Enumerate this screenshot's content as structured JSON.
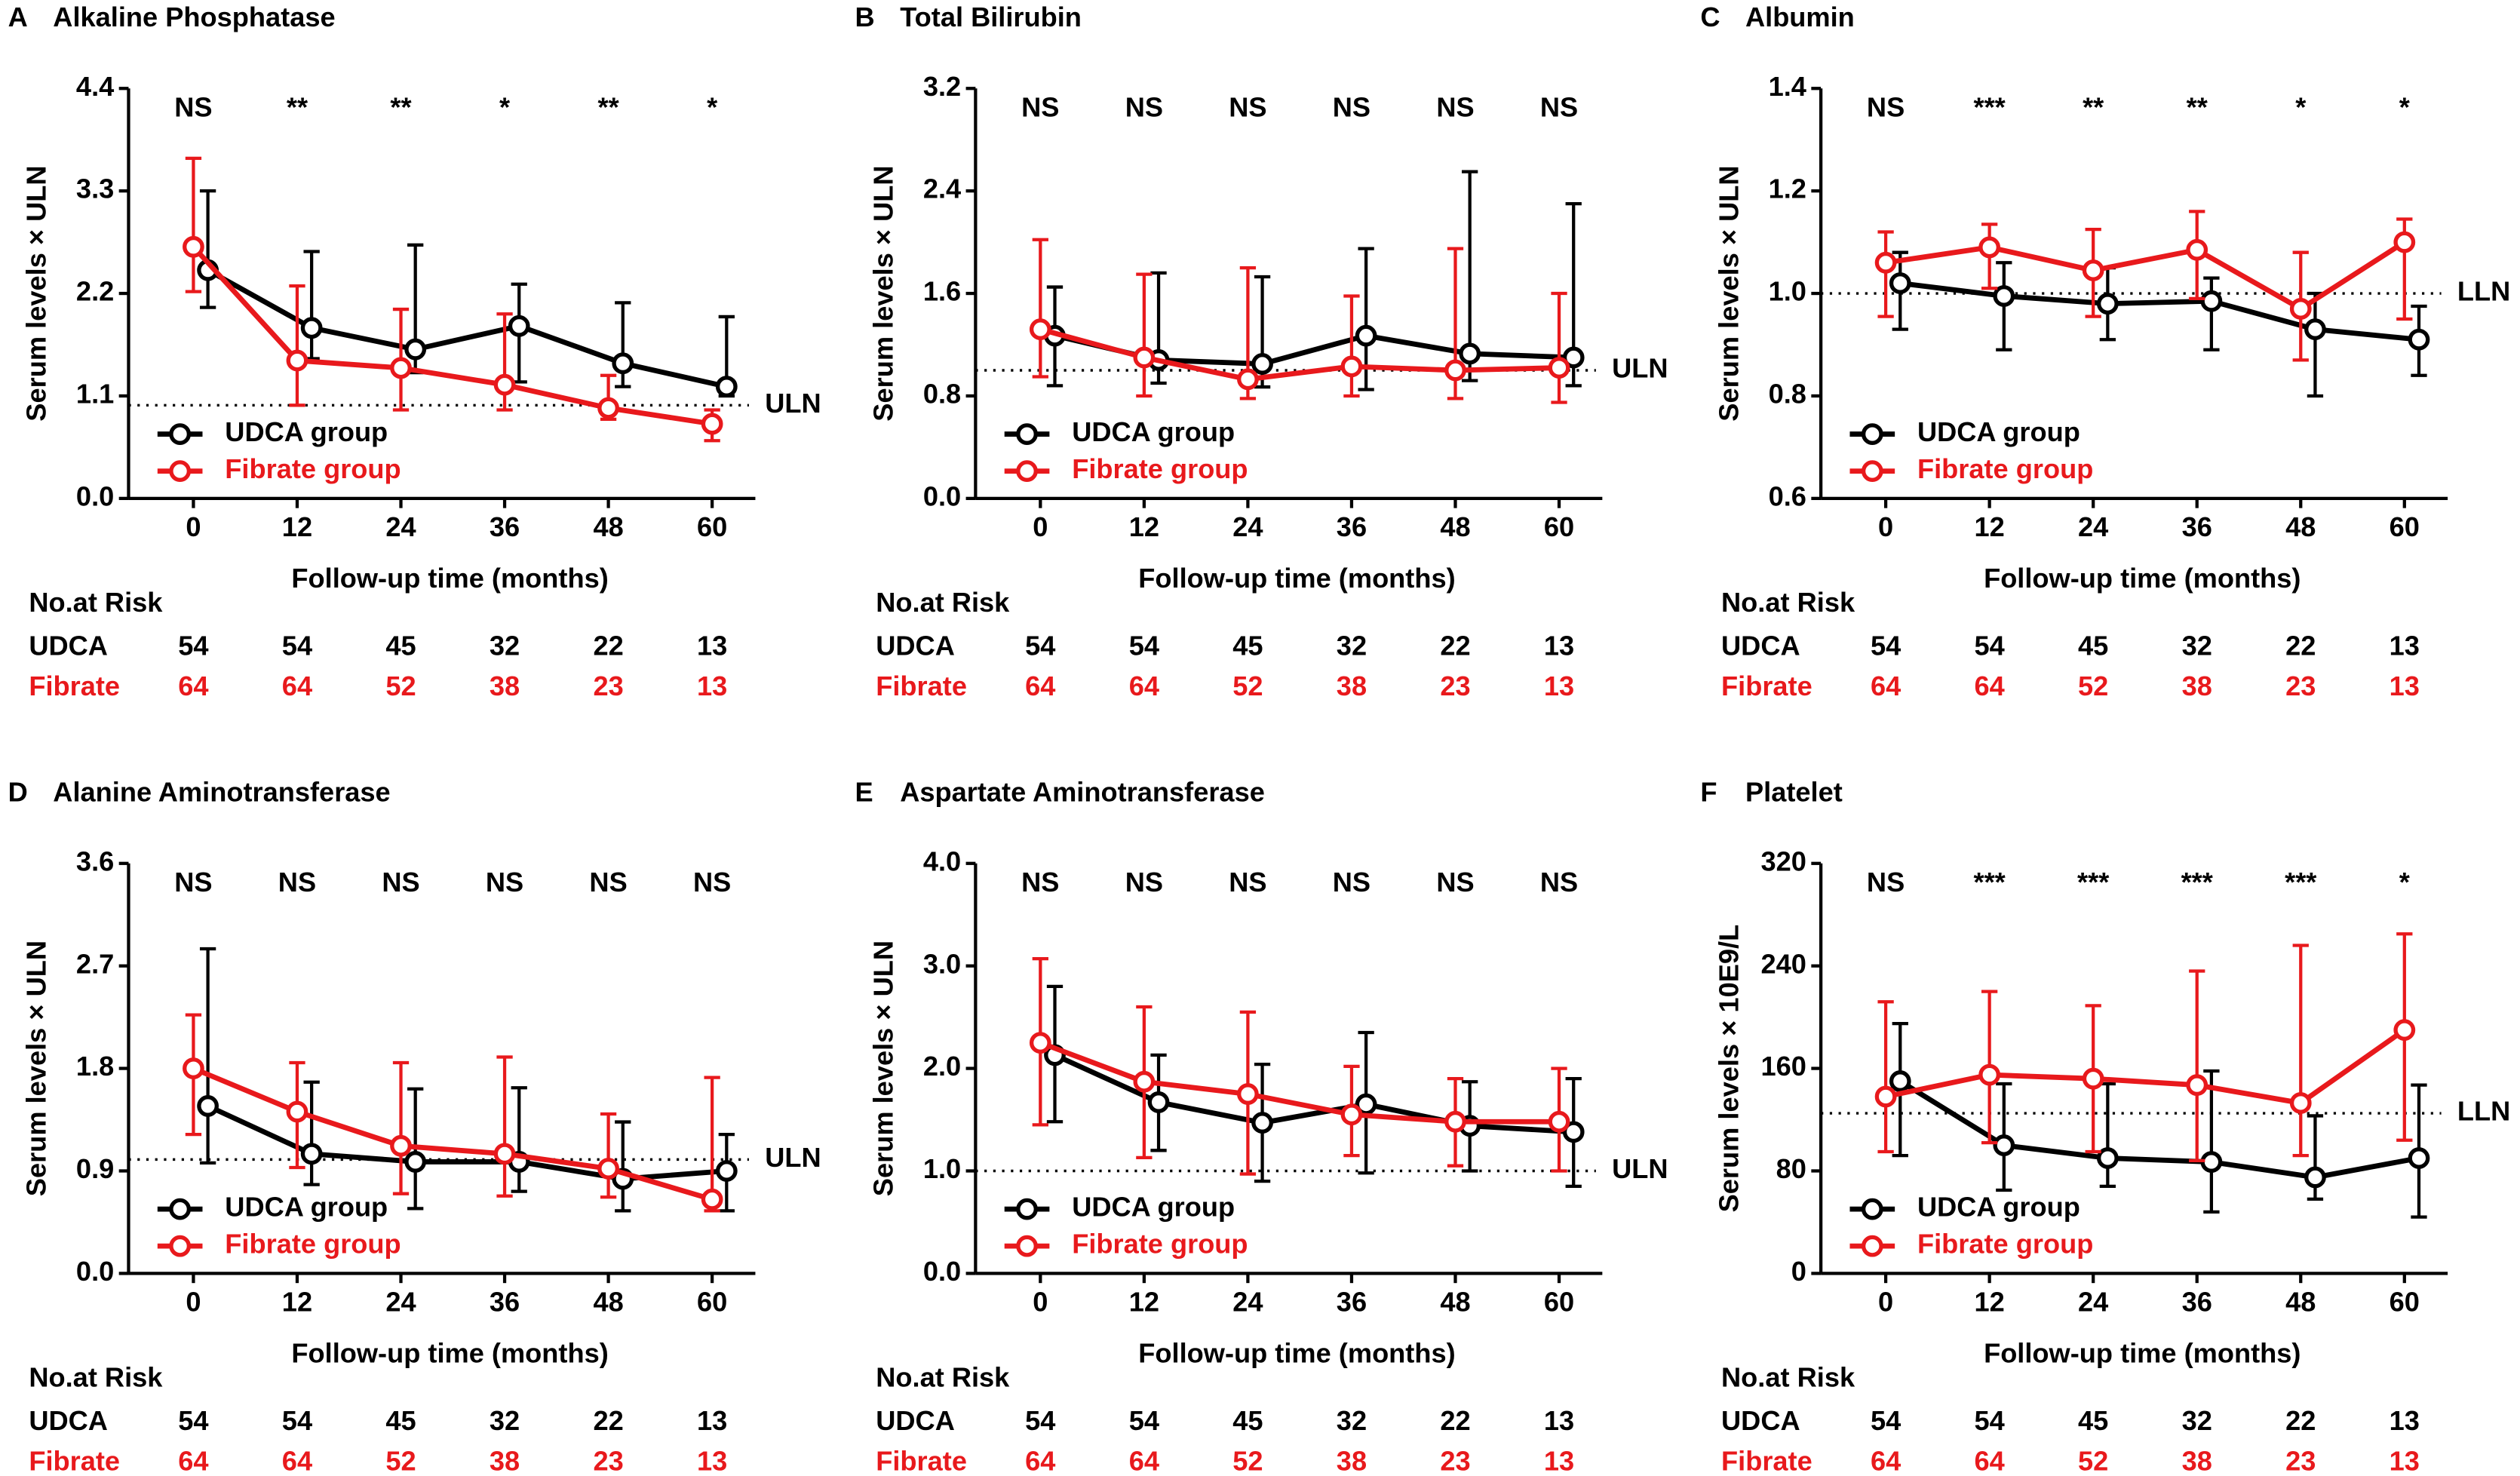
{
  "chart_data": [
    {
      "type": "line",
      "label": "A",
      "title": "Alkaline Phosphatase",
      "ylabel": "Serum levels × ULN",
      "xlabel": "Follow-up time (months)",
      "x": [
        0,
        12,
        24,
        36,
        48,
        60
      ],
      "xlim": [
        -7.5,
        65
      ],
      "xticks": [
        0,
        12,
        24,
        36,
        48,
        60
      ],
      "ylim": [
        0,
        4.4
      ],
      "yticks": [
        {
          "value": 0,
          "label": "0.0"
        },
        1.1,
        2.2,
        3.3,
        4.4
      ],
      "annotations": [
        "NS",
        "**",
        "**",
        "*",
        "**",
        "*"
      ],
      "ref_line": {
        "value": 1,
        "label": "ULN"
      },
      "series": [
        {
          "name": "UDCA group",
          "color": "#000000",
          "values": [
            2.45,
            1.83,
            1.6,
            1.85,
            1.45,
            1.2
          ],
          "err_high": [
            3.3,
            2.65,
            2.72,
            2.3,
            2.1,
            1.95
          ],
          "err_low": [
            2.05,
            1.5,
            1.35,
            1.25,
            1.2,
            1.1
          ]
        },
        {
          "name": "Fibrate group",
          "color": "#e8191c",
          "values": [
            2.7,
            1.48,
            1.4,
            1.22,
            0.97,
            0.8
          ],
          "err_high": [
            3.65,
            2.28,
            2.03,
            1.98,
            1.32,
            0.95
          ],
          "err_low": [
            2.22,
            1.0,
            0.95,
            0.95,
            0.85,
            0.62
          ]
        }
      ],
      "risk_table": {
        "title": "No.at Risk",
        "rows": [
          {
            "name": "UDCA",
            "values": [
              54,
              54,
              45,
              32,
              22,
              13
            ]
          },
          {
            "name": "Fibrate",
            "values": [
              64,
              64,
              52,
              38,
              23,
              13
            ]
          }
        ]
      }
    },
    {
      "type": "line",
      "label": "B",
      "title": "Total Bilirubin",
      "ylabel": "Serum levels × ULN",
      "xlabel": "Follow-up time (months)",
      "x": [
        0,
        12,
        24,
        36,
        48,
        60
      ],
      "xlim": [
        -7.5,
        65
      ],
      "xticks": [
        0,
        12,
        24,
        36,
        48,
        60
      ],
      "ylim": [
        0,
        3.2
      ],
      "yticks": [
        {
          "value": 0,
          "label": "0.0"
        },
        0.8,
        1.6,
        2.4,
        3.2
      ],
      "annotations": [
        "NS",
        "NS",
        "NS",
        "NS",
        "NS",
        "NS"
      ],
      "ref_line": {
        "value": 1,
        "label": "ULN"
      },
      "series": [
        {
          "name": "UDCA group",
          "color": "#000000",
          "values": [
            1.27,
            1.08,
            1.05,
            1.27,
            1.13,
            1.1
          ],
          "err_high": [
            1.65,
            1.76,
            1.73,
            1.95,
            2.55,
            2.3
          ],
          "err_low": [
            0.88,
            0.9,
            0.87,
            0.85,
            0.92,
            0.88
          ]
        },
        {
          "name": "Fibrate group",
          "color": "#e8191c",
          "values": [
            1.32,
            1.1,
            0.93,
            1.03,
            1.0,
            1.02
          ],
          "err_high": [
            2.02,
            1.75,
            1.8,
            1.58,
            1.95,
            1.6
          ],
          "err_low": [
            0.95,
            0.8,
            0.78,
            0.8,
            0.78,
            0.75
          ]
        }
      ],
      "risk_table": {
        "title": "No.at Risk",
        "rows": [
          {
            "name": "UDCA",
            "values": [
              54,
              54,
              45,
              32,
              22,
              13
            ]
          },
          {
            "name": "Fibrate",
            "values": [
              64,
              64,
              52,
              38,
              23,
              13
            ]
          }
        ]
      }
    },
    {
      "type": "line",
      "label": "C",
      "title": "Albumin",
      "ylabel": "Serum levels × ULN",
      "xlabel": "Follow-up time (months)",
      "x": [
        0,
        12,
        24,
        36,
        48,
        60
      ],
      "xlim": [
        -7.5,
        65
      ],
      "xticks": [
        0,
        12,
        24,
        36,
        48,
        60
      ],
      "ylim": [
        0.6,
        1.4
      ],
      "yticks": [
        0.6,
        0.8,
        {
          "value": 1,
          "label": "1.0"
        },
        1.2,
        1.4
      ],
      "annotations": [
        "NS",
        "***",
        "**",
        "**",
        "*",
        "*"
      ],
      "ref_line": {
        "value": 1,
        "label": "LLN"
      },
      "series": [
        {
          "name": "UDCA group",
          "color": "#000000",
          "values": [
            1.02,
            0.995,
            0.98,
            0.985,
            0.93,
            0.91
          ],
          "err_high": [
            1.08,
            1.06,
            1.05,
            1.03,
            1.0,
            0.975
          ],
          "err_low": [
            0.93,
            0.89,
            0.91,
            0.89,
            0.8,
            0.84
          ]
        },
        {
          "name": "Fibrate group",
          "color": "#e8191c",
          "values": [
            1.06,
            1.09,
            1.045,
            1.085,
            0.97,
            1.1
          ],
          "err_high": [
            1.12,
            1.135,
            1.125,
            1.16,
            1.08,
            1.145
          ],
          "err_low": [
            0.955,
            1.01,
            0.955,
            0.99,
            0.87,
            0.95
          ]
        }
      ],
      "risk_table": {
        "title": "No.at Risk",
        "rows": [
          {
            "name": "UDCA",
            "values": [
              54,
              54,
              45,
              32,
              22,
              13
            ]
          },
          {
            "name": "Fibrate",
            "values": [
              64,
              64,
              52,
              38,
              23,
              13
            ]
          }
        ]
      }
    },
    {
      "type": "line",
      "label": "D",
      "title": "Alanine Aminotransferase",
      "ylabel": "Serum levels × ULN",
      "xlabel": "Follow-up time (months)",
      "x": [
        0,
        12,
        24,
        36,
        48,
        60
      ],
      "xlim": [
        -7.5,
        65
      ],
      "xticks": [
        0,
        12,
        24,
        36,
        48,
        60
      ],
      "ylim": [
        0,
        3.6
      ],
      "yticks": [
        {
          "value": 0,
          "label": "0.0"
        },
        0.9,
        1.8,
        2.7,
        3.6
      ],
      "annotations": [
        "NS",
        "NS",
        "NS",
        "NS",
        "NS",
        "NS"
      ],
      "ref_line": {
        "value": 1,
        "label": "ULN"
      },
      "series": [
        {
          "name": "UDCA group",
          "color": "#000000",
          "values": [
            1.47,
            1.05,
            0.98,
            0.98,
            0.83,
            0.9
          ],
          "err_high": [
            2.85,
            1.68,
            1.62,
            1.63,
            1.33,
            1.22
          ],
          "err_low": [
            0.97,
            0.78,
            0.57,
            0.72,
            0.55,
            0.55
          ]
        },
        {
          "name": "Fibrate group",
          "color": "#e8191c",
          "values": [
            1.8,
            1.42,
            1.12,
            1.05,
            0.92,
            0.65
          ],
          "err_high": [
            2.27,
            1.85,
            1.85,
            1.9,
            1.4,
            1.72
          ],
          "err_low": [
            1.22,
            0.93,
            0.7,
            0.68,
            0.67,
            0.55
          ]
        }
      ],
      "risk_table": {
        "title": "No.at Risk",
        "rows": [
          {
            "name": "UDCA",
            "values": [
              54,
              54,
              45,
              32,
              22,
              13
            ]
          },
          {
            "name": "Fibrate",
            "values": [
              64,
              64,
              52,
              38,
              23,
              13
            ]
          }
        ]
      }
    },
    {
      "type": "line",
      "label": "E",
      "title": "Aspartate Aminotransferase",
      "ylabel": "Serum levels × ULN",
      "xlabel": "Follow-up time (months)",
      "x": [
        0,
        12,
        24,
        36,
        48,
        60
      ],
      "xlim": [
        -7.5,
        65
      ],
      "xticks": [
        0,
        12,
        24,
        36,
        48,
        60
      ],
      "ylim": [
        0,
        4
      ],
      "yticks": [
        {
          "value": 0,
          "label": "0.0"
        },
        {
          "value": 1,
          "label": "1.0"
        },
        {
          "value": 2,
          "label": "2.0"
        },
        {
          "value": 3,
          "label": "3.0"
        },
        {
          "value": 4,
          "label": "4.0"
        }
      ],
      "annotations": [
        "NS",
        "NS",
        "NS",
        "NS",
        "NS",
        "NS"
      ],
      "ref_line": {
        "value": 1,
        "label": "ULN"
      },
      "series": [
        {
          "name": "UDCA group",
          "color": "#000000",
          "values": [
            2.13,
            1.67,
            1.47,
            1.65,
            1.44,
            1.38
          ],
          "err_high": [
            2.8,
            2.13,
            2.04,
            2.35,
            1.87,
            1.9
          ],
          "err_low": [
            1.48,
            1.2,
            0.9,
            0.98,
            1.0,
            0.85
          ]
        },
        {
          "name": "Fibrate group",
          "color": "#e8191c",
          "values": [
            2.25,
            1.87,
            1.75,
            1.55,
            1.48,
            1.48
          ],
          "err_high": [
            3.07,
            2.6,
            2.55,
            2.02,
            1.9,
            2.0
          ],
          "err_low": [
            1.45,
            1.13,
            0.97,
            1.15,
            1.05,
            1.0
          ]
        }
      ],
      "risk_table": {
        "title": "No.at Risk",
        "rows": [
          {
            "name": "UDCA",
            "values": [
              54,
              54,
              45,
              32,
              22,
              13
            ]
          },
          {
            "name": "Fibrate",
            "values": [
              64,
              64,
              52,
              38,
              23,
              13
            ]
          }
        ]
      }
    },
    {
      "type": "line",
      "label": "F",
      "title": "Platelet",
      "ylabel": "Serum levels × 10E9/L",
      "xlabel": "Follow-up time (months)",
      "x": [
        0,
        12,
        24,
        36,
        48,
        60
      ],
      "xlim": [
        -7.5,
        65
      ],
      "xticks": [
        0,
        12,
        24,
        36,
        48,
        60
      ],
      "ylim": [
        0,
        320
      ],
      "yticks": [
        0,
        80,
        160,
        240,
        320
      ],
      "annotations": [
        "NS",
        "***",
        "***",
        "***",
        "***",
        "*"
      ],
      "ref_line": {
        "value": 125,
        "label": "LLN"
      },
      "series": [
        {
          "name": "UDCA group",
          "color": "#000000",
          "values": [
            150,
            100,
            90,
            87,
            75,
            90
          ],
          "err_high": [
            195,
            148,
            148,
            158,
            123,
            147
          ],
          "err_low": [
            92,
            65,
            68,
            48,
            58,
            44
          ]
        },
        {
          "name": "Fibrate group",
          "color": "#e8191c",
          "values": [
            138,
            155,
            152,
            147,
            133,
            190
          ],
          "err_high": [
            212,
            220,
            209,
            236,
            256,
            265
          ],
          "err_low": [
            95,
            102,
            95,
            88,
            92,
            104
          ]
        }
      ],
      "risk_table": {
        "title": "No.at Risk",
        "rows": [
          {
            "name": "UDCA",
            "values": [
              54,
              54,
              45,
              32,
              22,
              13
            ]
          },
          {
            "name": "Fibrate",
            "values": [
              64,
              64,
              52,
              38,
              23,
              13
            ]
          }
        ]
      }
    }
  ]
}
